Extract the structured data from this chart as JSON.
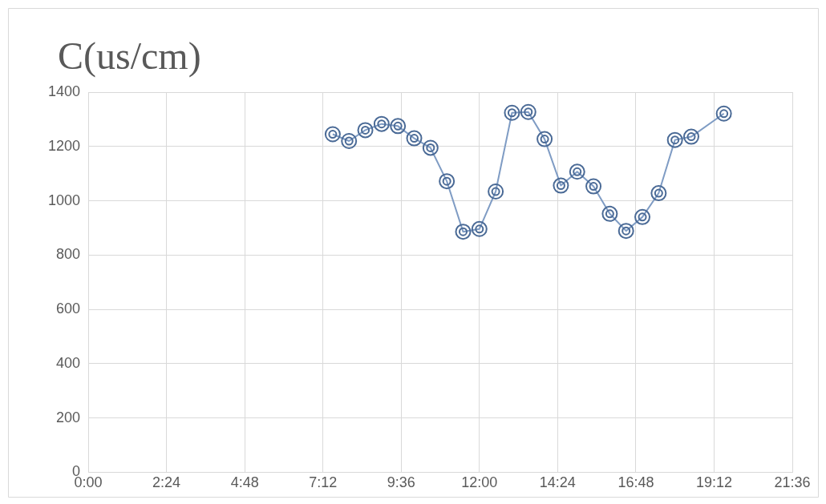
{
  "chart_data": {
    "type": "line",
    "title": "C(us/cm)",
    "x": [
      7.5,
      8,
      8.5,
      9,
      9.5,
      10,
      10.5,
      11,
      11.5,
      12,
      12.5,
      13,
      13.5,
      14,
      14.5,
      15,
      15.5,
      16,
      16.5,
      17,
      17.5,
      18,
      18.5,
      19.5
    ],
    "series": [
      {
        "color": "#7f9cc4",
        "values": [
          1245,
          1220,
          1260,
          1283,
          1275,
          1230,
          1195,
          1072,
          886,
          896,
          1034,
          1324,
          1327,
          1227,
          1056,
          1107,
          1053,
          952,
          889,
          940,
          1028,
          1224,
          1236,
          1321
        ]
      }
    ],
    "xlim": [
      0,
      21.6
    ],
    "xticks": [
      {
        "value": 0,
        "label": "0:00"
      },
      {
        "value": 2.4,
        "label": "2:24"
      },
      {
        "value": 4.8,
        "label": "4:48"
      },
      {
        "value": 7.2,
        "label": "7:12"
      },
      {
        "value": 9.6,
        "label": "9:36"
      },
      {
        "value": 12,
        "label": "12:00"
      },
      {
        "value": 14.4,
        "label": "14:24"
      },
      {
        "value": 16.8,
        "label": "16:48"
      },
      {
        "value": 19.2,
        "label": "19:12"
      },
      {
        "value": 21.6,
        "label": "21:36"
      }
    ],
    "ylim": [
      0,
      1400
    ],
    "yticks": [
      0,
      200,
      400,
      600,
      800,
      1000,
      1200,
      1400
    ],
    "grid": true,
    "legend": false,
    "marker": "circle",
    "line_style": "solid"
  }
}
